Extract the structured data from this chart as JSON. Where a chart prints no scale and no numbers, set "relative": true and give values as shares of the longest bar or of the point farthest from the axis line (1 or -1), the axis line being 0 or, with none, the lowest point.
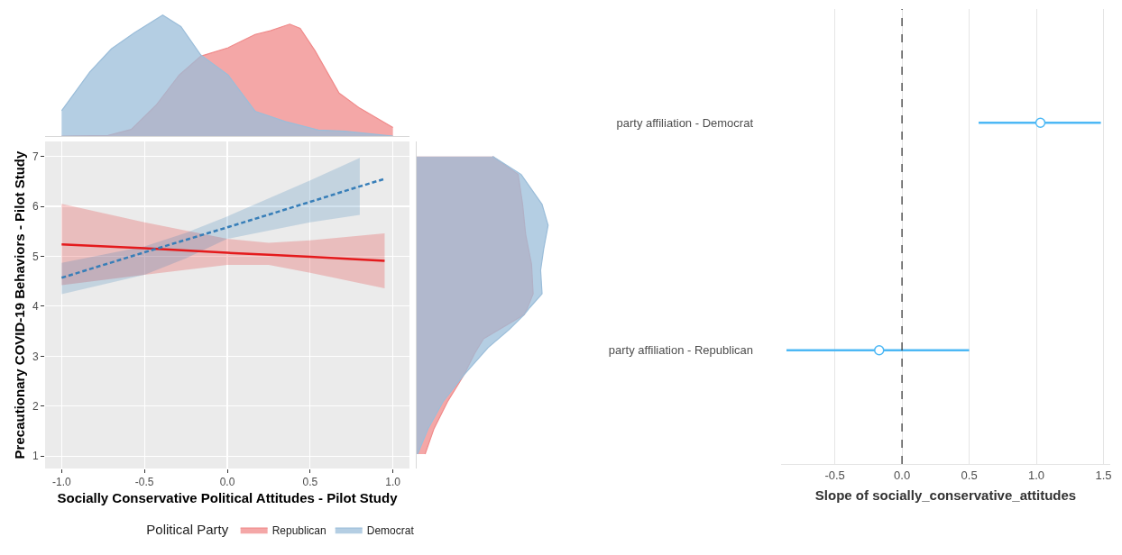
{
  "chart_data": [
    {
      "type": "area",
      "relative": true,
      "xlim": [
        -1.1,
        1.1
      ],
      "tick_labels": false,
      "legend": "bottom",
      "legend_title": "Political Party",
      "series": [
        {
          "name": "Republican",
          "color": "#f08a8a",
          "x": [
            -1,
            -0.72,
            -0.58,
            -0.43,
            -0.29,
            -0.16,
            0.005,
            0.168,
            0.26,
            0.377,
            0.44,
            0.53,
            0.675,
            0.8,
            1.0
          ],
          "values": [
            0,
            0.005,
            0.055,
            0.255,
            0.505,
            0.66,
            0.73,
            0.84,
            0.87,
            0.925,
            0.89,
            0.705,
            0.355,
            0.23,
            0.07
          ]
        },
        {
          "name": "Democrat",
          "color": "#9bbdd9",
          "x": [
            -1,
            -0.83,
            -0.7,
            -0.56,
            -0.39,
            -0.28,
            -0.16,
            0.005,
            0.168,
            0.35,
            0.55,
            0.71,
            1.0
          ],
          "values": [
            0.21,
            0.53,
            0.72,
            0.855,
            1.0,
            0.905,
            0.67,
            0.505,
            0.205,
            0.12,
            0.05,
            0.04,
            0
          ]
        }
      ]
    },
    {
      "type": "line",
      "xlabel": "Socially Conservative Political Attitudes - Pilot Study",
      "ylabel": "Precautionary COVID-19 Behaviors - Pilot Study",
      "xlim": [
        -1.1,
        1.1
      ],
      "xticks": [
        {
          "value": -1,
          "label": "-1.0"
        },
        -0.5,
        {
          "value": 0,
          "label": "0.0"
        },
        0.5,
        {
          "value": 1,
          "label": "1.0"
        }
      ],
      "ylim": [
        0.75,
        7.3
      ],
      "yticks": [
        1,
        2,
        3,
        4,
        5,
        6,
        7
      ],
      "grid": true,
      "series": [
        {
          "color": "#e41a1c",
          "line_style": "solid",
          "x": [
            -1,
            -0.5,
            0,
            0.25,
            0.5,
            0.95
          ],
          "values": [
            5.24,
            5.16,
            5.07,
            5.03,
            4.99,
            4.91
          ],
          "lower": [
            4.42,
            4.63,
            4.83,
            4.83,
            4.67,
            4.36
          ],
          "upper": [
            6.05,
            5.68,
            5.35,
            5.27,
            5.32,
            5.46
          ]
        },
        {
          "color": "#377eb8",
          "line_style": "dashed",
          "x": [
            -1,
            -0.5,
            -0.25,
            0,
            0.5,
            0.8,
            0.95
          ],
          "values": [
            4.57,
            5.08,
            5.33,
            5.58,
            6.09,
            6.4,
            6.55
          ],
          "lower": [
            4.24,
            4.63,
            4.96,
            5.35,
            5.68,
            5.83,
            null
          ],
          "upper": [
            4.87,
            5.2,
            5.47,
            5.8,
            6.52,
            6.97,
            null
          ]
        }
      ]
    },
    {
      "type": "area",
      "relative": true,
      "orientation": "horizontal",
      "ylim": [
        0.75,
        7.3
      ],
      "tick_labels": false,
      "series": [
        {
          "color": "#f08a8a",
          "x": [
            7.0,
            6.64,
            6.04,
            5.44,
            4.84,
            4.25,
            3.95,
            3.83,
            3.35,
            3.05,
            2.63,
            2.09,
            1.55,
            1.04
          ],
          "values": [
            0.578,
            0.772,
            0.806,
            0.829,
            0.874,
            0.886,
            0.84,
            0.817,
            0.509,
            0.44,
            0.361,
            0.235,
            0.132,
            0.064
          ]
        },
        {
          "color": "#9bbdd9",
          "x": [
            7.0,
            6.64,
            6.04,
            5.62,
            5.14,
            4.72,
            4.25,
            3.98,
            3.83,
            3.53,
            3.17,
            2.63,
            2.09,
            1.55,
            1.04
          ],
          "values": [
            0.578,
            0.795,
            0.954,
            1.0,
            0.966,
            0.943,
            0.954,
            0.863,
            0.817,
            0.703,
            0.543,
            0.361,
            0.201,
            0.087,
            0.007
          ]
        }
      ]
    },
    {
      "type": "scatter",
      "orientation": "horizontal",
      "categories": [
        "party affiliation - Democrat",
        "party affiliation - Republican"
      ],
      "values": [
        1.03,
        -0.17
      ],
      "errors": [
        [
          0.57,
          1.48
        ],
        [
          -0.86,
          0.5
        ]
      ],
      "color": "#4db8f5",
      "marker": "circle",
      "xlim": [
        -0.9,
        1.55
      ],
      "xticks": [
        -0.5,
        {
          "value": 0,
          "label": "0.0"
        },
        0.5,
        {
          "value": 1,
          "label": "1.0"
        },
        1.5
      ],
      "grid": "x",
      "xlabel": "Slope of socially_conservative_attitudes",
      "ref_lines": [
        {
          "axis": "x",
          "value": 0,
          "line_style": "dashed",
          "color": "#333333"
        }
      ]
    }
  ]
}
